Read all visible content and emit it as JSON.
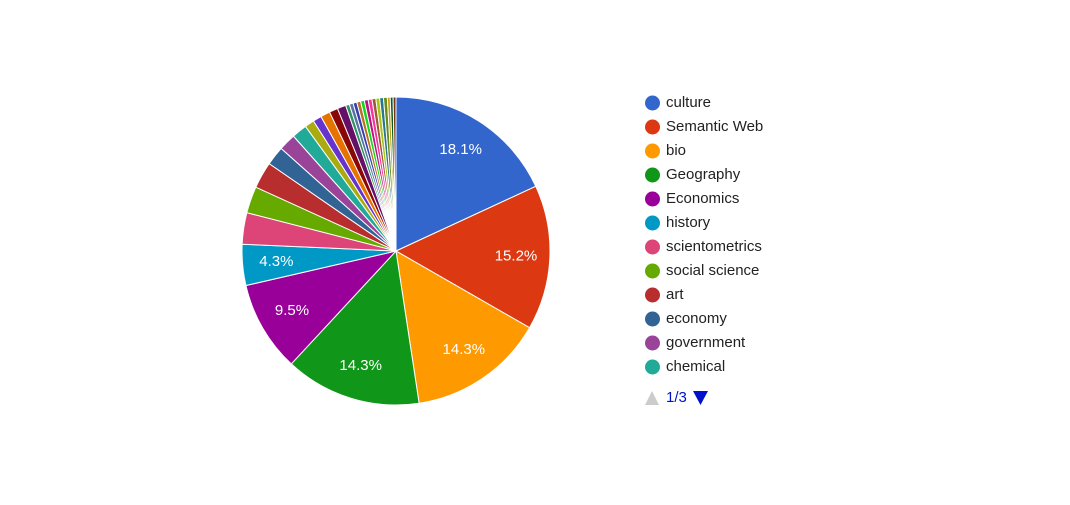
{
  "chart_data": {
    "type": "pie",
    "categories": [
      "culture",
      "Semantic Web",
      "bio",
      "Geography",
      "Economics",
      "history",
      "scientometrics",
      "social science",
      "art",
      "economy",
      "government",
      "chemical",
      null,
      null,
      null,
      null,
      null,
      null,
      null,
      null,
      null,
      null,
      null,
      null,
      null,
      null,
      null,
      null,
      null,
      null,
      null
    ],
    "values": [
      18.1,
      15.2,
      14.3,
      14.3,
      9.5,
      4.3,
      3.3,
      2.8,
      2.8,
      2.0,
      1.8,
      1.6,
      1.0,
      0.9,
      1.0,
      0.9,
      0.9,
      0.4,
      0.4,
      0.4,
      0.4,
      0.4,
      0.4,
      0.4,
      0.4,
      0.4,
      0.4,
      0.4,
      0.3,
      0.3,
      0.3
    ],
    "value_labels": [
      "18.1%",
      "15.2%",
      "14.3%",
      "14.3%",
      "9.5%",
      "4.3%",
      null,
      null,
      null,
      null,
      null,
      null,
      null,
      null,
      null,
      null,
      null,
      null,
      null,
      null,
      null,
      null,
      null,
      null,
      null,
      null,
      null,
      null,
      null,
      null,
      null
    ],
    "colors": [
      "#3366cc",
      "#dc3912",
      "#ff9900",
      "#109618",
      "#990099",
      "#0099c6",
      "#dd4477",
      "#66aa00",
      "#b82e2e",
      "#316395",
      "#994499",
      "#22aa99",
      "#aaaa11",
      "#6633cc",
      "#e67300",
      "#8b0707",
      "#651067",
      "#329262",
      "#5574a6",
      "#3b3eac",
      "#b77322",
      "#16d620",
      "#b91383",
      "#f4359e",
      "#9c5935",
      "#a9c413",
      "#2a778d",
      "#668d1c",
      "#bea413",
      "#0c5922",
      "#743411"
    ],
    "legend_page": "1/3"
  }
}
